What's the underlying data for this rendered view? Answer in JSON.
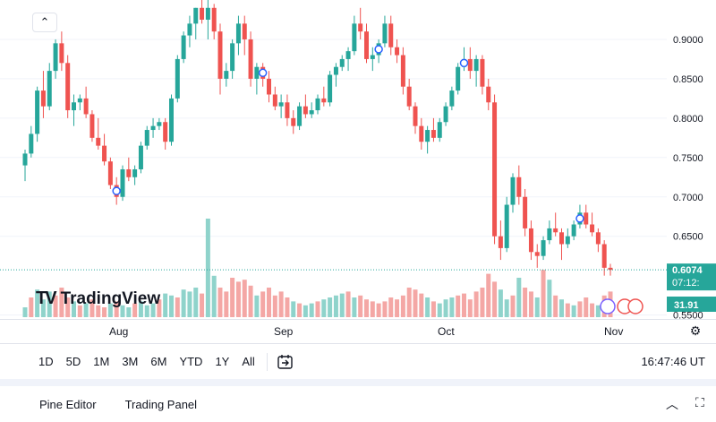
{
  "chart_data": {
    "type": "candlestick",
    "title": "",
    "y_axis": {
      "ticks": [
        "0.9000",
        "0.8500",
        "0.8000",
        "0.7500",
        "0.7000",
        "0.6500",
        "0.5500"
      ],
      "range": [
        0.545,
        0.95
      ]
    },
    "x_axis": {
      "labels": [
        "Aug",
        "Sep",
        "Oct",
        "Nov"
      ]
    },
    "last_price": "0.6074",
    "countdown": "07:12:",
    "volume_label": "31.91",
    "candles": [
      [
        0.74,
        0.76,
        0.72,
        0.755
      ],
      [
        0.755,
        0.79,
        0.75,
        0.78
      ],
      [
        0.78,
        0.84,
        0.77,
        0.835
      ],
      [
        0.835,
        0.86,
        0.8,
        0.815
      ],
      [
        0.815,
        0.87,
        0.81,
        0.86
      ],
      [
        0.86,
        0.9,
        0.85,
        0.895
      ],
      [
        0.895,
        0.91,
        0.86,
        0.87
      ],
      [
        0.87,
        0.88,
        0.8,
        0.81
      ],
      [
        0.81,
        0.83,
        0.79,
        0.82
      ],
      [
        0.82,
        0.83,
        0.81,
        0.825
      ],
      [
        0.825,
        0.84,
        0.8,
        0.805
      ],
      [
        0.805,
        0.81,
        0.77,
        0.775
      ],
      [
        0.775,
        0.8,
        0.76,
        0.765
      ],
      [
        0.765,
        0.78,
        0.74,
        0.745
      ],
      [
        0.745,
        0.75,
        0.71,
        0.715
      ],
      [
        0.715,
        0.725,
        0.69,
        0.7
      ],
      [
        0.7,
        0.74,
        0.695,
        0.735
      ],
      [
        0.735,
        0.75,
        0.72,
        0.725
      ],
      [
        0.725,
        0.74,
        0.715,
        0.735
      ],
      [
        0.735,
        0.77,
        0.73,
        0.765
      ],
      [
        0.765,
        0.79,
        0.76,
        0.785
      ],
      [
        0.785,
        0.8,
        0.775,
        0.79
      ],
      [
        0.79,
        0.8,
        0.785,
        0.795
      ],
      [
        0.795,
        0.8,
        0.76,
        0.77
      ],
      [
        0.77,
        0.83,
        0.765,
        0.825
      ],
      [
        0.825,
        0.88,
        0.82,
        0.875
      ],
      [
        0.875,
        0.91,
        0.87,
        0.905
      ],
      [
        0.905,
        0.93,
        0.89,
        0.92
      ],
      [
        0.92,
        0.94,
        0.9,
        0.94
      ],
      [
        0.94,
        0.95,
        0.92,
        0.925
      ],
      [
        0.925,
        0.95,
        0.9,
        0.94
      ],
      [
        0.94,
        0.945,
        0.9,
        0.91
      ],
      [
        0.91,
        0.92,
        0.83,
        0.85
      ],
      [
        0.85,
        0.87,
        0.84,
        0.86
      ],
      [
        0.86,
        0.9,
        0.85,
        0.895
      ],
      [
        0.895,
        0.93,
        0.88,
        0.92
      ],
      [
        0.92,
        0.93,
        0.88,
        0.9
      ],
      [
        0.9,
        0.91,
        0.84,
        0.85
      ],
      [
        0.85,
        0.87,
        0.83,
        0.865
      ],
      [
        0.865,
        0.87,
        0.84,
        0.85
      ],
      [
        0.85,
        0.86,
        0.82,
        0.83
      ],
      [
        0.83,
        0.84,
        0.81,
        0.815
      ],
      [
        0.815,
        0.83,
        0.8,
        0.82
      ],
      [
        0.82,
        0.83,
        0.79,
        0.8
      ],
      [
        0.8,
        0.81,
        0.78,
        0.79
      ],
      [
        0.79,
        0.82,
        0.785,
        0.815
      ],
      [
        0.815,
        0.83,
        0.8,
        0.805
      ],
      [
        0.805,
        0.82,
        0.8,
        0.81
      ],
      [
        0.81,
        0.83,
        0.805,
        0.825
      ],
      [
        0.825,
        0.84,
        0.815,
        0.82
      ],
      [
        0.82,
        0.86,
        0.815,
        0.855
      ],
      [
        0.855,
        0.87,
        0.84,
        0.865
      ],
      [
        0.865,
        0.88,
        0.86,
        0.875
      ],
      [
        0.875,
        0.89,
        0.86,
        0.885
      ],
      [
        0.885,
        0.93,
        0.88,
        0.92
      ],
      [
        0.92,
        0.94,
        0.9,
        0.91
      ],
      [
        0.91,
        0.92,
        0.87,
        0.875
      ],
      [
        0.875,
        0.89,
        0.86,
        0.88
      ],
      [
        0.88,
        0.9,
        0.87,
        0.895
      ],
      [
        0.895,
        0.93,
        0.89,
        0.92
      ],
      [
        0.92,
        0.93,
        0.88,
        0.89
      ],
      [
        0.89,
        0.9,
        0.87,
        0.88
      ],
      [
        0.88,
        0.89,
        0.83,
        0.84
      ],
      [
        0.84,
        0.85,
        0.81,
        0.815
      ],
      [
        0.815,
        0.82,
        0.78,
        0.79
      ],
      [
        0.79,
        0.8,
        0.76,
        0.77
      ],
      [
        0.77,
        0.79,
        0.755,
        0.785
      ],
      [
        0.785,
        0.8,
        0.77,
        0.775
      ],
      [
        0.775,
        0.8,
        0.77,
        0.795
      ],
      [
        0.795,
        0.82,
        0.79,
        0.815
      ],
      [
        0.815,
        0.84,
        0.81,
        0.835
      ],
      [
        0.835,
        0.87,
        0.83,
        0.865
      ],
      [
        0.865,
        0.89,
        0.86,
        0.875
      ],
      [
        0.875,
        0.89,
        0.85,
        0.86
      ],
      [
        0.86,
        0.88,
        0.84,
        0.875
      ],
      [
        0.875,
        0.88,
        0.83,
        0.84
      ],
      [
        0.84,
        0.85,
        0.81,
        0.82
      ],
      [
        0.82,
        0.83,
        0.64,
        0.65
      ],
      [
        0.65,
        0.67,
        0.62,
        0.635
      ],
      [
        0.635,
        0.7,
        0.63,
        0.69
      ],
      [
        0.69,
        0.73,
        0.68,
        0.725
      ],
      [
        0.725,
        0.74,
        0.69,
        0.7
      ],
      [
        0.7,
        0.71,
        0.65,
        0.66
      ],
      [
        0.66,
        0.67,
        0.62,
        0.63
      ],
      [
        0.63,
        0.64,
        0.61,
        0.625
      ],
      [
        0.625,
        0.65,
        0.62,
        0.645
      ],
      [
        0.645,
        0.67,
        0.64,
        0.66
      ],
      [
        0.66,
        0.68,
        0.65,
        0.655
      ],
      [
        0.655,
        0.66,
        0.62,
        0.64
      ],
      [
        0.64,
        0.66,
        0.635,
        0.65
      ],
      [
        0.65,
        0.67,
        0.645,
        0.665
      ],
      [
        0.665,
        0.69,
        0.66,
        0.68
      ],
      [
        0.68,
        0.69,
        0.66,
        0.665
      ],
      [
        0.665,
        0.68,
        0.65,
        0.655
      ],
      [
        0.655,
        0.66,
        0.63,
        0.64
      ],
      [
        0.64,
        0.645,
        0.6,
        0.61
      ],
      [
        0.61,
        0.615,
        0.6,
        0.6074
      ]
    ],
    "volume": [
      [
        10,
        1
      ],
      [
        20,
        0
      ],
      [
        28,
        1
      ],
      [
        18,
        1
      ],
      [
        26,
        1
      ],
      [
        22,
        0
      ],
      [
        30,
        0
      ],
      [
        20,
        0
      ],
      [
        16,
        1
      ],
      [
        12,
        0
      ],
      [
        14,
        1
      ],
      [
        18,
        0
      ],
      [
        12,
        0
      ],
      [
        10,
        0
      ],
      [
        14,
        1
      ],
      [
        16,
        0
      ],
      [
        12,
        1
      ],
      [
        10,
        1
      ],
      [
        14,
        0
      ],
      [
        16,
        1
      ],
      [
        12,
        1
      ],
      [
        14,
        1
      ],
      [
        18,
        0
      ],
      [
        24,
        1
      ],
      [
        22,
        1
      ],
      [
        20,
        0
      ],
      [
        28,
        1
      ],
      [
        26,
        1
      ],
      [
        30,
        1
      ],
      [
        24,
        0
      ],
      [
        100,
        1
      ],
      [
        42,
        1
      ],
      [
        30,
        0
      ],
      [
        26,
        0
      ],
      [
        40,
        0
      ],
      [
        36,
        0
      ],
      [
        38,
        0
      ],
      [
        32,
        0
      ],
      [
        22,
        1
      ],
      [
        26,
        0
      ],
      [
        30,
        0
      ],
      [
        22,
        0
      ],
      [
        26,
        0
      ],
      [
        20,
        0
      ],
      [
        16,
        1
      ],
      [
        14,
        0
      ],
      [
        12,
        1
      ],
      [
        14,
        1
      ],
      [
        16,
        0
      ],
      [
        18,
        1
      ],
      [
        20,
        1
      ],
      [
        22,
        1
      ],
      [
        24,
        1
      ],
      [
        26,
        0
      ],
      [
        20,
        1
      ],
      [
        22,
        0
      ],
      [
        18,
        0
      ],
      [
        16,
        0
      ],
      [
        14,
        0
      ],
      [
        16,
        0
      ],
      [
        20,
        0
      ],
      [
        18,
        0
      ],
      [
        22,
        0
      ],
      [
        30,
        0
      ],
      [
        28,
        0
      ],
      [
        24,
        0
      ],
      [
        20,
        1
      ],
      [
        16,
        0
      ],
      [
        14,
        1
      ],
      [
        18,
        1
      ],
      [
        20,
        1
      ],
      [
        22,
        0
      ],
      [
        24,
        0
      ],
      [
        18,
        0
      ],
      [
        26,
        0
      ],
      [
        30,
        0
      ],
      [
        44,
        0
      ],
      [
        36,
        0
      ],
      [
        28,
        1
      ],
      [
        18,
        1
      ],
      [
        22,
        0
      ],
      [
        40,
        1
      ],
      [
        30,
        0
      ],
      [
        26,
        0
      ],
      [
        20,
        1
      ],
      [
        48,
        0
      ],
      [
        38,
        1
      ],
      [
        22,
        0
      ],
      [
        18,
        1
      ],
      [
        14,
        0
      ],
      [
        12,
        1
      ],
      [
        16,
        0
      ],
      [
        20,
        0
      ],
      [
        14,
        0
      ],
      [
        12,
        1
      ],
      [
        22,
        0
      ],
      [
        26,
        0
      ]
    ],
    "markers": [
      15,
      39,
      58,
      72,
      91
    ]
  },
  "ui": {
    "collapse_icon": "chevron-up-icon",
    "logo": {
      "mark": "TV",
      "text": "TradingView"
    },
    "timeframes": [
      "1D",
      "5D",
      "1M",
      "3M",
      "6M",
      "YTD",
      "1Y",
      "All"
    ],
    "clock": "16:47:46 UT",
    "tabs": [
      "Pine Editor",
      "Trading Panel"
    ],
    "colors": {
      "up": "#26a69a",
      "down": "#ef5350",
      "up_vol": "#8fd3cb",
      "down_vol": "#f4a7a5",
      "price_tag": "#26a69a",
      "grid": "#f0f3fa"
    }
  }
}
